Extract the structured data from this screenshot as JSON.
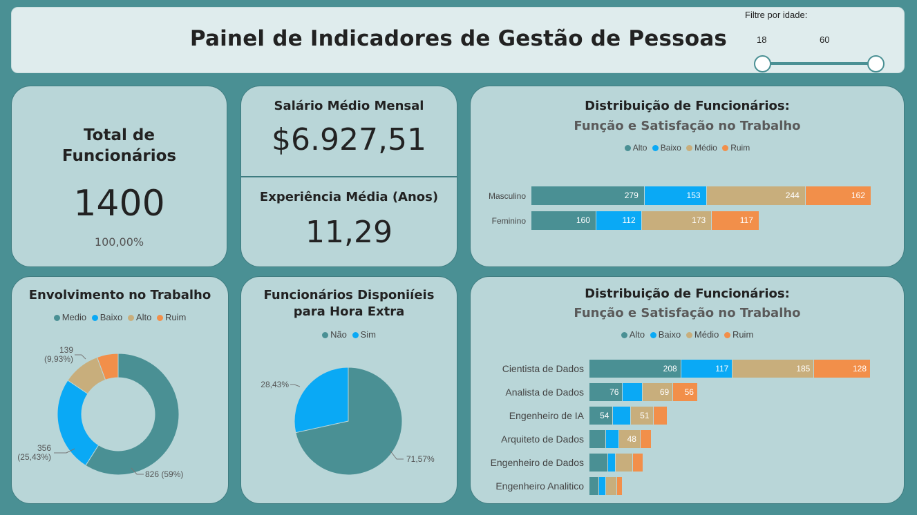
{
  "header": {
    "title": "Painel de Indicadores de Gestão de Pessoas",
    "filter_label": "Filtre por idade:",
    "age_min": "18",
    "age_max": "60"
  },
  "total": {
    "title_line1": "Total de",
    "title_line2": "Funcionários",
    "value": "1400",
    "percent": "100,00%"
  },
  "salary": {
    "title": "Salário Médio Mensal",
    "value": "$6.927,51"
  },
  "experience": {
    "title": "Experiência Média (Anos)",
    "value": "11,29"
  },
  "colors": {
    "alto": "#4a9094",
    "baixo": "#0aa9f5",
    "medio": "#c8ae7c",
    "ruim": "#f28f4a"
  },
  "gender_chart": {
    "title": "Distribuição de Funcionários:",
    "subtitle": "Função e Satisfação no Trabalho",
    "legend": [
      "Alto",
      "Baixo",
      "Médio",
      "Ruim"
    ]
  },
  "role_chart": {
    "title": "Distribuição de Funcionários:",
    "subtitle": "Função e Satisfação no Trabalho",
    "legend": [
      "Alto",
      "Baixo",
      "Médio",
      "Ruim"
    ]
  },
  "engagement": {
    "title": "Envolvimento no Trabalho",
    "legend": [
      "Medio",
      "Baixo",
      "Alto",
      "Ruim"
    ],
    "label_medio": "826 (59%)",
    "label_baixo_1": "356",
    "label_baixo_2": "(25,43%)",
    "label_alto_1": "139",
    "label_alto_2": "(9,93%)"
  },
  "overtime": {
    "title_line1": "Funcionários Disponiíeis",
    "title_line2": "para Hora Extra",
    "legend": [
      "Não",
      "Sim"
    ],
    "label_nao": "71,57%",
    "label_sim": "28,43%"
  },
  "chart_data": [
    {
      "type": "bar",
      "title": "Distribuição de Funcionários:",
      "subtitle": "Função e Satisfação no Trabalho",
      "orientation": "horizontal-stacked",
      "categories": [
        "Masculino",
        "Feminino"
      ],
      "series": [
        {
          "name": "Alto",
          "values": [
            279,
            160
          ]
        },
        {
          "name": "Baixo",
          "values": [
            153,
            112
          ]
        },
        {
          "name": "Médio",
          "values": [
            244,
            173
          ]
        },
        {
          "name": "Ruim",
          "values": [
            162,
            117
          ]
        }
      ],
      "legend": "top"
    },
    {
      "type": "bar",
      "title": "Distribuição de Funcionários:",
      "subtitle": "Função e Satisfação no Trabalho",
      "orientation": "horizontal-stacked",
      "categories": [
        "Cientista de Dados",
        "Analista de Dados",
        "Engenheiro de IA",
        "Arquiteto de Dados",
        "Engenheiro de Dados",
        "Engenheiro Analitico"
      ],
      "series": [
        {
          "name": "Alto",
          "values": [
            208,
            76,
            54,
            38,
            42,
            22
          ]
        },
        {
          "name": "Baixo",
          "values": [
            117,
            45,
            40,
            30,
            17,
            15
          ]
        },
        {
          "name": "Médio",
          "values": [
            185,
            69,
            51,
            48,
            39,
            25
          ]
        },
        {
          "name": "Ruim",
          "values": [
            128,
            56,
            32,
            25,
            25,
            14
          ]
        }
      ],
      "legend": "top"
    },
    {
      "type": "pie",
      "title": "Envolvimento no Trabalho",
      "donut": true,
      "labels": [
        "Medio",
        "Baixo",
        "Alto",
        "Ruim"
      ],
      "values": [
        826,
        356,
        139,
        79
      ],
      "legend": "top"
    },
    {
      "type": "pie",
      "title": "Funcionários Disponiíeis para Hora Extra",
      "labels": [
        "Não",
        "Sim"
      ],
      "values": [
        71.57,
        28.43
      ],
      "legend": "top"
    }
  ]
}
